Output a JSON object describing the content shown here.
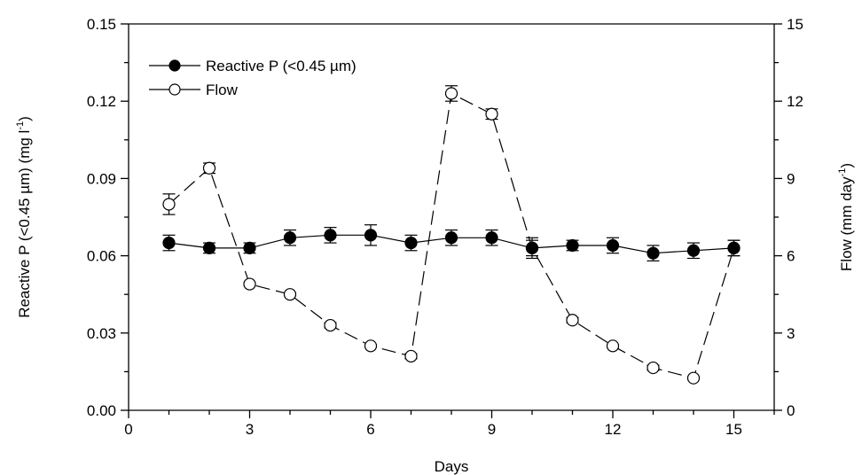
{
  "chart_data": {
    "type": "line",
    "xlabel": "Days",
    "ylabel_left": "Reactive P (<0.45 µm) (mg l",
    "ylabel_left_sup": "-1",
    "ylabel_left_end": ")",
    "ylabel_right": "Flow (mm day",
    "ylabel_right_sup": "-1",
    "ylabel_right_end": ")",
    "xlim": [
      0,
      16
    ],
    "ylim_left": [
      0,
      0.15
    ],
    "ylim_right": [
      0,
      15
    ],
    "x_ticks": [
      "0",
      "3",
      "6",
      "9",
      "12",
      "15"
    ],
    "y_left_ticks": [
      "0.00",
      "0.03",
      "0.06",
      "0.09",
      "0.12",
      "0.15"
    ],
    "y_right_ticks": [
      "0",
      "3",
      "6",
      "9",
      "12",
      "15"
    ],
    "legend_position": "top-left",
    "series": [
      {
        "name": "Reactive P (<0.45 µm)",
        "axis": "left",
        "marker": "filled-circle",
        "line": "solid",
        "x": [
          1,
          2,
          3,
          4,
          5,
          6,
          7,
          8,
          9,
          10,
          11,
          12,
          13,
          14,
          15
        ],
        "y": [
          0.065,
          0.063,
          0.063,
          0.067,
          0.068,
          0.068,
          0.065,
          0.067,
          0.067,
          0.063,
          0.064,
          0.064,
          0.061,
          0.062,
          0.063
        ],
        "err": [
          0.003,
          0.002,
          0.002,
          0.003,
          0.003,
          0.004,
          0.003,
          0.003,
          0.003,
          0.003,
          0.002,
          0.003,
          0.003,
          0.003,
          0.003
        ]
      },
      {
        "name": "Flow",
        "axis": "right",
        "marker": "open-circle",
        "line": "dashed",
        "x": [
          1,
          2,
          3,
          4,
          5,
          6,
          7,
          8,
          9,
          10,
          11,
          12,
          13,
          14,
          15
        ],
        "y": [
          8.0,
          9.4,
          4.9,
          4.5,
          3.3,
          2.5,
          2.1,
          12.3,
          11.5,
          6.3,
          3.5,
          2.5,
          1.65,
          1.25,
          6.3
        ],
        "err": [
          0.4,
          0.2,
          0.05,
          0.05,
          0.1,
          0.05,
          0.1,
          0.3,
          0.2,
          0.4,
          0.1,
          0.05,
          0.1,
          0.05,
          0.3
        ]
      }
    ]
  }
}
